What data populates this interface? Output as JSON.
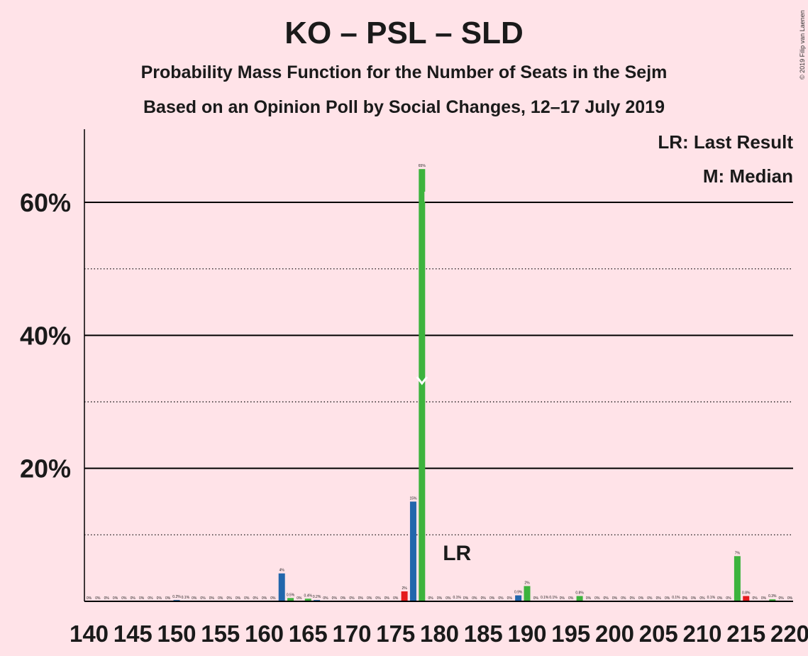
{
  "header": {
    "title": "KO – PSL – SLD",
    "subtitle": "Probability Mass Function for the Number of Seats in the Sejm",
    "subtitle2": "Based on an Opinion Poll by Social Changes, 12–17 July 2019",
    "copyright": "© 2019 Filip van Laenen"
  },
  "legend": {
    "last_result": "LR: Last Result",
    "median": "M: Median"
  },
  "markers": {
    "last_result_label": "LR",
    "last_result_seat": 182,
    "median_seat": 178
  },
  "colors": {
    "background": "#FFE3E8",
    "blue": "#2166AC",
    "green": "#3DB33D",
    "red": "#E41A1C",
    "median_mark": "#FFFFFF"
  },
  "chart_data": {
    "type": "bar",
    "xlabel": "",
    "ylabel": "",
    "ylim": [
      0,
      70
    ],
    "y_ticks": [
      {
        "value": 20,
        "label": "20%"
      },
      {
        "value": 40,
        "label": "40%"
      },
      {
        "value": 60,
        "label": "60%"
      }
    ],
    "y_minor_gridlines": [
      10,
      30,
      50
    ],
    "x_tick_labels": [
      {
        "seat": 140,
        "label": "140"
      },
      {
        "seat": 145,
        "label": "145"
      },
      {
        "seat": 150,
        "label": "150"
      },
      {
        "seat": 155,
        "label": "155"
      },
      {
        "seat": 160,
        "label": "160"
      },
      {
        "seat": 165,
        "label": "165"
      },
      {
        "seat": 170,
        "label": "170"
      },
      {
        "seat": 175,
        "label": "175"
      },
      {
        "seat": 180,
        "label": "180"
      },
      {
        "seat": 185,
        "label": "185"
      },
      {
        "seat": 190,
        "label": "190"
      },
      {
        "seat": 195,
        "label": "195"
      },
      {
        "seat": 200,
        "label": "200"
      },
      {
        "seat": 205,
        "label": "205"
      },
      {
        "seat": 210,
        "label": "210"
      },
      {
        "seat": 215,
        "label": "215"
      },
      {
        "seat": 220,
        "label": "220"
      }
    ],
    "bars": [
      {
        "seat": 140,
        "value": 0,
        "label": "0%",
        "color": "blue"
      },
      {
        "seat": 141,
        "value": 0,
        "label": "0%",
        "color": "green"
      },
      {
        "seat": 142,
        "value": 0,
        "label": "0%",
        "color": "blue"
      },
      {
        "seat": 143,
        "value": 0,
        "label": "0%",
        "color": "green"
      },
      {
        "seat": 144,
        "value": 0,
        "label": "0%",
        "color": "blue"
      },
      {
        "seat": 145,
        "value": 0,
        "label": "0%",
        "color": "green"
      },
      {
        "seat": 146,
        "value": 0,
        "label": "0%",
        "color": "blue"
      },
      {
        "seat": 147,
        "value": 0,
        "label": "0%",
        "color": "green"
      },
      {
        "seat": 148,
        "value": 0,
        "label": "0%",
        "color": "blue"
      },
      {
        "seat": 149,
        "value": 0,
        "label": "0%",
        "color": "green"
      },
      {
        "seat": 150,
        "value": 0.2,
        "label": "0.2%",
        "color": "blue"
      },
      {
        "seat": 151,
        "value": 0.1,
        "label": "0.1%",
        "color": "green"
      },
      {
        "seat": 152,
        "value": 0,
        "label": "0%",
        "color": "blue"
      },
      {
        "seat": 153,
        "value": 0,
        "label": "0%",
        "color": "green"
      },
      {
        "seat": 154,
        "value": 0,
        "label": "0%",
        "color": "blue"
      },
      {
        "seat": 155,
        "value": 0,
        "label": "0%",
        "color": "green"
      },
      {
        "seat": 156,
        "value": 0,
        "label": "0%",
        "color": "blue"
      },
      {
        "seat": 157,
        "value": 0,
        "label": "0%",
        "color": "green"
      },
      {
        "seat": 158,
        "value": 0,
        "label": "0%",
        "color": "blue"
      },
      {
        "seat": 159,
        "value": 0,
        "label": "0%",
        "color": "green"
      },
      {
        "seat": 160,
        "value": 0,
        "label": "0%",
        "color": "blue"
      },
      {
        "seat": 161,
        "value": 0,
        "label": "0%",
        "color": "green"
      },
      {
        "seat": 162,
        "value": 4.2,
        "label": "4%",
        "color": "blue"
      },
      {
        "seat": 163,
        "value": 0.5,
        "label": "0.5%",
        "color": "green"
      },
      {
        "seat": 164,
        "value": 0,
        "label": "0%",
        "color": "blue"
      },
      {
        "seat": 165,
        "value": 0.4,
        "label": "0.4%",
        "color": "green"
      },
      {
        "seat": 166,
        "value": 0.2,
        "label": "0.2%",
        "color": "blue"
      },
      {
        "seat": 167,
        "value": 0,
        "label": "0%",
        "color": "green"
      },
      {
        "seat": 168,
        "value": 0,
        "label": "0%",
        "color": "blue"
      },
      {
        "seat": 169,
        "value": 0,
        "label": "0%",
        "color": "green"
      },
      {
        "seat": 170,
        "value": 0,
        "label": "0%",
        "color": "blue"
      },
      {
        "seat": 171,
        "value": 0,
        "label": "0%",
        "color": "green"
      },
      {
        "seat": 172,
        "value": 0,
        "label": "0%",
        "color": "blue"
      },
      {
        "seat": 173,
        "value": 0,
        "label": "0%",
        "color": "green"
      },
      {
        "seat": 174,
        "value": 0,
        "label": "0%",
        "color": "blue"
      },
      {
        "seat": 175,
        "value": 0,
        "label": "0%",
        "color": "green"
      },
      {
        "seat": 176,
        "value": 1.5,
        "label": "2%",
        "color": "red"
      },
      {
        "seat": 177,
        "value": 15,
        "label": "15%",
        "color": "blue"
      },
      {
        "seat": 178,
        "value": 65,
        "label": "65%",
        "color": "green"
      },
      {
        "seat": 179,
        "value": 0,
        "label": "0%",
        "color": "blue"
      },
      {
        "seat": 180,
        "value": 0,
        "label": "0%",
        "color": "green"
      },
      {
        "seat": 181,
        "value": 0,
        "label": "0%",
        "color": "blue"
      },
      {
        "seat": 182,
        "value": 0.1,
        "label": "0.1%",
        "color": "green"
      },
      {
        "seat": 183,
        "value": 0,
        "label": "0%",
        "color": "blue"
      },
      {
        "seat": 184,
        "value": 0,
        "label": "0%",
        "color": "green"
      },
      {
        "seat": 185,
        "value": 0,
        "label": "0%",
        "color": "blue"
      },
      {
        "seat": 186,
        "value": 0,
        "label": "0%",
        "color": "green"
      },
      {
        "seat": 187,
        "value": 0,
        "label": "0%",
        "color": "blue"
      },
      {
        "seat": 188,
        "value": 0,
        "label": "0%",
        "color": "green"
      },
      {
        "seat": 189,
        "value": 0.9,
        "label": "0.9%",
        "color": "blue"
      },
      {
        "seat": 190,
        "value": 2.3,
        "label": "2%",
        "color": "green"
      },
      {
        "seat": 191,
        "value": 0,
        "label": "0%",
        "color": "blue"
      },
      {
        "seat": 192,
        "value": 0.1,
        "label": "0.1%",
        "color": "green"
      },
      {
        "seat": 193,
        "value": 0.1,
        "label": "0.1%",
        "color": "blue"
      },
      {
        "seat": 194,
        "value": 0,
        "label": "0%",
        "color": "green"
      },
      {
        "seat": 195,
        "value": 0,
        "label": "0%",
        "color": "blue"
      },
      {
        "seat": 196,
        "value": 0.8,
        "label": "0.8%",
        "color": "green"
      },
      {
        "seat": 197,
        "value": 0,
        "label": "0%",
        "color": "blue"
      },
      {
        "seat": 198,
        "value": 0,
        "label": "0%",
        "color": "green"
      },
      {
        "seat": 199,
        "value": 0,
        "label": "0%",
        "color": "blue"
      },
      {
        "seat": 200,
        "value": 0,
        "label": "0%",
        "color": "green"
      },
      {
        "seat": 201,
        "value": 0,
        "label": "0%",
        "color": "blue"
      },
      {
        "seat": 202,
        "value": 0,
        "label": "0%",
        "color": "green"
      },
      {
        "seat": 203,
        "value": 0,
        "label": "0%",
        "color": "blue"
      },
      {
        "seat": 204,
        "value": 0,
        "label": "0%",
        "color": "green"
      },
      {
        "seat": 205,
        "value": 0,
        "label": "0%",
        "color": "blue"
      },
      {
        "seat": 206,
        "value": 0,
        "label": "0%",
        "color": "green"
      },
      {
        "seat": 207,
        "value": 0.1,
        "label": "0.1%",
        "color": "blue"
      },
      {
        "seat": 208,
        "value": 0,
        "label": "0%",
        "color": "green"
      },
      {
        "seat": 209,
        "value": 0,
        "label": "0%",
        "color": "blue"
      },
      {
        "seat": 210,
        "value": 0,
        "label": "0%",
        "color": "green"
      },
      {
        "seat": 211,
        "value": 0.1,
        "label": "0.1%",
        "color": "blue"
      },
      {
        "seat": 212,
        "value": 0,
        "label": "0%",
        "color": "green"
      },
      {
        "seat": 213,
        "value": 0,
        "label": "0%",
        "color": "blue"
      },
      {
        "seat": 214,
        "value": 6.8,
        "label": "7%",
        "color": "green"
      },
      {
        "seat": 215,
        "value": 0.8,
        "label": "0.8%",
        "color": "red"
      },
      {
        "seat": 216,
        "value": 0,
        "label": "0%",
        "color": "green"
      },
      {
        "seat": 217,
        "value": 0,
        "label": "0%",
        "color": "blue"
      },
      {
        "seat": 218,
        "value": 0.3,
        "label": "0.3%",
        "color": "green"
      },
      {
        "seat": 219,
        "value": 0,
        "label": "0%",
        "color": "blue"
      },
      {
        "seat": 220,
        "value": 0,
        "label": "0%",
        "color": "green"
      }
    ]
  }
}
